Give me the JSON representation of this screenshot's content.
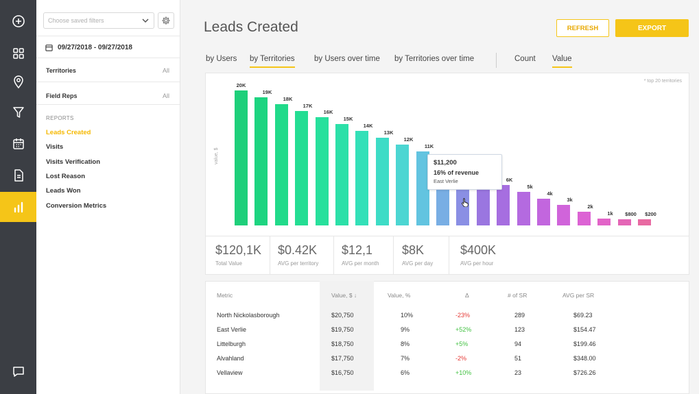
{
  "rail": {
    "items": [
      "plus-circle-icon",
      "grid-icon",
      "location-pin-icon",
      "funnel-icon",
      "calendar-icon",
      "document-icon",
      "bar-chart-icon"
    ],
    "active": "bar-chart-icon",
    "bottom": "chat-icon"
  },
  "sidebar": {
    "filter_placeholder": "Choose saved filters",
    "date_range": "09/27/2018 - 09/27/2018",
    "filters": [
      {
        "label": "Territories",
        "value": "All"
      },
      {
        "label": "Field Reps",
        "value": "All"
      }
    ],
    "reports_title": "REPORTS",
    "reports": [
      {
        "label": "Leads Created",
        "active": true
      },
      {
        "label": "Visits",
        "active": false
      },
      {
        "label": "Visits Verification",
        "active": false
      },
      {
        "label": "Lost Reason",
        "active": false
      },
      {
        "label": "Leads Won",
        "active": false
      },
      {
        "label": "Conversion Metrics",
        "active": false
      }
    ]
  },
  "header": {
    "title": "Leads Created",
    "refresh_label": "REFRESH",
    "export_label": "EXPORT"
  },
  "tabs": [
    {
      "label": "by Users",
      "active": false
    },
    {
      "label": "by Territories",
      "active": true
    },
    {
      "label": "by Users over time",
      "active": false
    },
    {
      "label": "by Territories over time",
      "active": false
    },
    {
      "label": "Count",
      "active": false
    },
    {
      "label": "Value",
      "active": true
    }
  ],
  "chart": {
    "note": "* top 20 territories",
    "ylabel": "value, $",
    "tooltip": {
      "value": "$11,200",
      "share": "16% of revenue",
      "name": "East Verlie"
    }
  },
  "chart_data": {
    "type": "bar",
    "labels": [
      "20K",
      "19K",
      "18K",
      "17K",
      "16K",
      "15K",
      "14K",
      "13K",
      "12K",
      "11K",
      "",
      "",
      "7K",
      "6K",
      "5k",
      "4k",
      "3k",
      "2k",
      "1k",
      "$800",
      "$200"
    ],
    "values": [
      20000,
      19000,
      18000,
      17000,
      16000,
      15000,
      14000,
      13000,
      12000,
      11000,
      10000,
      9000,
      7000,
      6000,
      5000,
      4000,
      3000,
      2000,
      1000,
      800,
      200
    ],
    "colors": [
      "#1ecf7a",
      "#1dd480",
      "#21da8a",
      "#24dd93",
      "#27e09c",
      "#2be0a8",
      "#33e0b8",
      "#3ddcc6",
      "#4cd6d2",
      "#62c4e0",
      "#78aee4",
      "#8a8fe4",
      "#9a76e0",
      "#a66ee0",
      "#b46ae0",
      "#c266de",
      "#d064da",
      "#dc63d4",
      "#e264c8",
      "#e466b6",
      "#e86aa2"
    ],
    "ylabel": "value, $"
  },
  "stats": [
    {
      "value": "$120,1K",
      "label": "Total Value"
    },
    {
      "value": "$0.42K",
      "label": "AVG per territory"
    },
    {
      "value": "$12,1",
      "label": "AVG per month"
    },
    {
      "value": "$8K",
      "label": "AVG per day"
    },
    {
      "value": "$400K",
      "label": "AVG per hour"
    }
  ],
  "table": {
    "headers": [
      "Metric",
      "Value, $ ↓",
      "Value, %",
      "Δ",
      "# of SR",
      "AVG per SR"
    ],
    "rows": [
      {
        "metric": "North Nickolasborough",
        "value": "$20,750",
        "pct": "10%",
        "delta": "-23%",
        "delta_sign": "neg",
        "sr": "289",
        "avg": "$69.23"
      },
      {
        "metric": "East Verlie",
        "value": "$19,750",
        "pct": "9%",
        "delta": "+52%",
        "delta_sign": "pos",
        "sr": "123",
        "avg": "$154.47"
      },
      {
        "metric": "Littelburgh",
        "value": "$18,750",
        "pct": "8%",
        "delta": "+5%",
        "delta_sign": "pos",
        "sr": "94",
        "avg": "$199.46"
      },
      {
        "metric": "Alvahland",
        "value": "$17,750",
        "pct": "7%",
        "delta": "-2%",
        "delta_sign": "neg",
        "sr": "51",
        "avg": "$348.00"
      },
      {
        "metric": "Vellaview",
        "value": "$16,750",
        "pct": "6%",
        "delta": "+10%",
        "delta_sign": "pos",
        "sr": "23",
        "avg": "$726.26"
      }
    ]
  },
  "colors": {
    "accent": "#f5c518",
    "rail": "#3b3e44",
    "negative": "#e53935",
    "positive": "#43c243"
  }
}
